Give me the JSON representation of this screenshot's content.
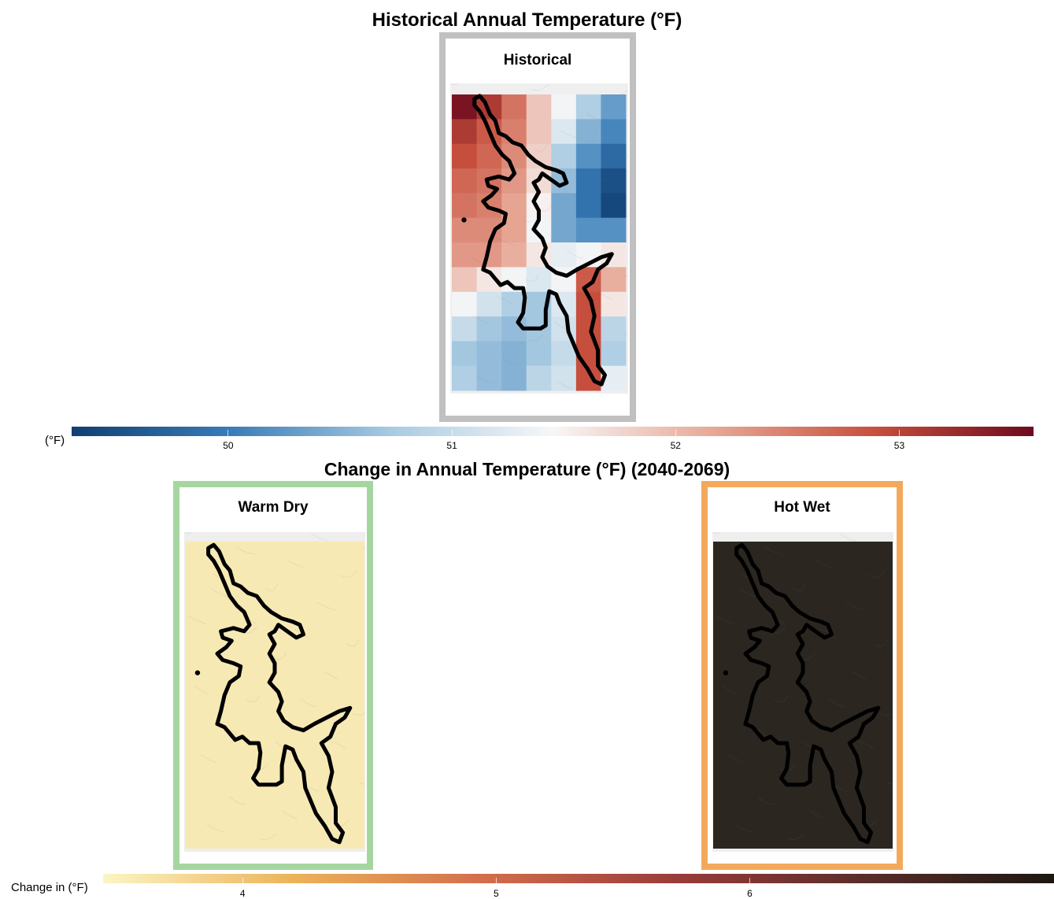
{
  "top": {
    "title": "Historical Annual Temperature (°F)",
    "panel": {
      "label": "Historical",
      "border_color": "#c0c0c0"
    },
    "legend": {
      "label": "(°F)",
      "colors": [
        "#0f3f73",
        "#3a7db8",
        "#a9cbe2",
        "#f7f7f7",
        "#e7a896",
        "#c8503e",
        "#6d0a1e"
      ],
      "min": 49.3,
      "max": 53.6,
      "ticks": [
        {
          "value": 50,
          "label": "50"
        },
        {
          "value": 51,
          "label": "51"
        },
        {
          "value": 52,
          "label": "52"
        },
        {
          "value": 53,
          "label": "53"
        }
      ]
    },
    "grid_values": [
      [
        53.5,
        53.1,
        52.6,
        51.9,
        51.4,
        50.8,
        50.3
      ],
      [
        53.1,
        52.8,
        52.5,
        51.9,
        51.2,
        50.5,
        50.1
      ],
      [
        52.9,
        52.7,
        52.4,
        51.8,
        50.8,
        50.2,
        49.8
      ],
      [
        52.7,
        52.6,
        52.3,
        51.7,
        50.6,
        49.9,
        49.5
      ],
      [
        52.6,
        52.5,
        52.2,
        51.5,
        50.4,
        49.9,
        49.4
      ],
      [
        52.4,
        52.4,
        52.2,
        51.4,
        50.4,
        50.2,
        50.2
      ],
      [
        52.3,
        52.3,
        52.1,
        51.6,
        51.3,
        51.4,
        51.6
      ],
      [
        51.9,
        51.6,
        51.4,
        51.2,
        51.4,
        52.8,
        52.1
      ],
      [
        51.4,
        51.1,
        50.8,
        50.7,
        51.2,
        52.9,
        51.6
      ],
      [
        51.0,
        50.7,
        50.6,
        50.7,
        51.1,
        52.9,
        50.9
      ],
      [
        50.7,
        50.6,
        50.5,
        50.7,
        51.0,
        52.9,
        50.8
      ],
      [
        50.8,
        50.6,
        50.5,
        50.9,
        51.1,
        52.9,
        51.3
      ]
    ]
  },
  "bottom": {
    "title": "Change in Annual Temperature (°F) (2040-2069)",
    "panels": [
      {
        "label": "Warm Dry",
        "border_color": "#a6d6a0",
        "value": 3.6
      },
      {
        "label": "Hot Wet",
        "border_color": "#f3a95c",
        "value": 7.3
      }
    ],
    "legend": {
      "label": "Change in (°F)",
      "colors": [
        "#fbf5c4",
        "#ecb359",
        "#d36e4c",
        "#9a3c3a",
        "#5a2d2a",
        "#1c1710"
      ],
      "min": 3.45,
      "max": 7.2,
      "ticks": [
        {
          "value": 4,
          "label": "4"
        },
        {
          "value": 5,
          "label": "5"
        },
        {
          "value": 6,
          "label": "6"
        }
      ]
    }
  }
}
